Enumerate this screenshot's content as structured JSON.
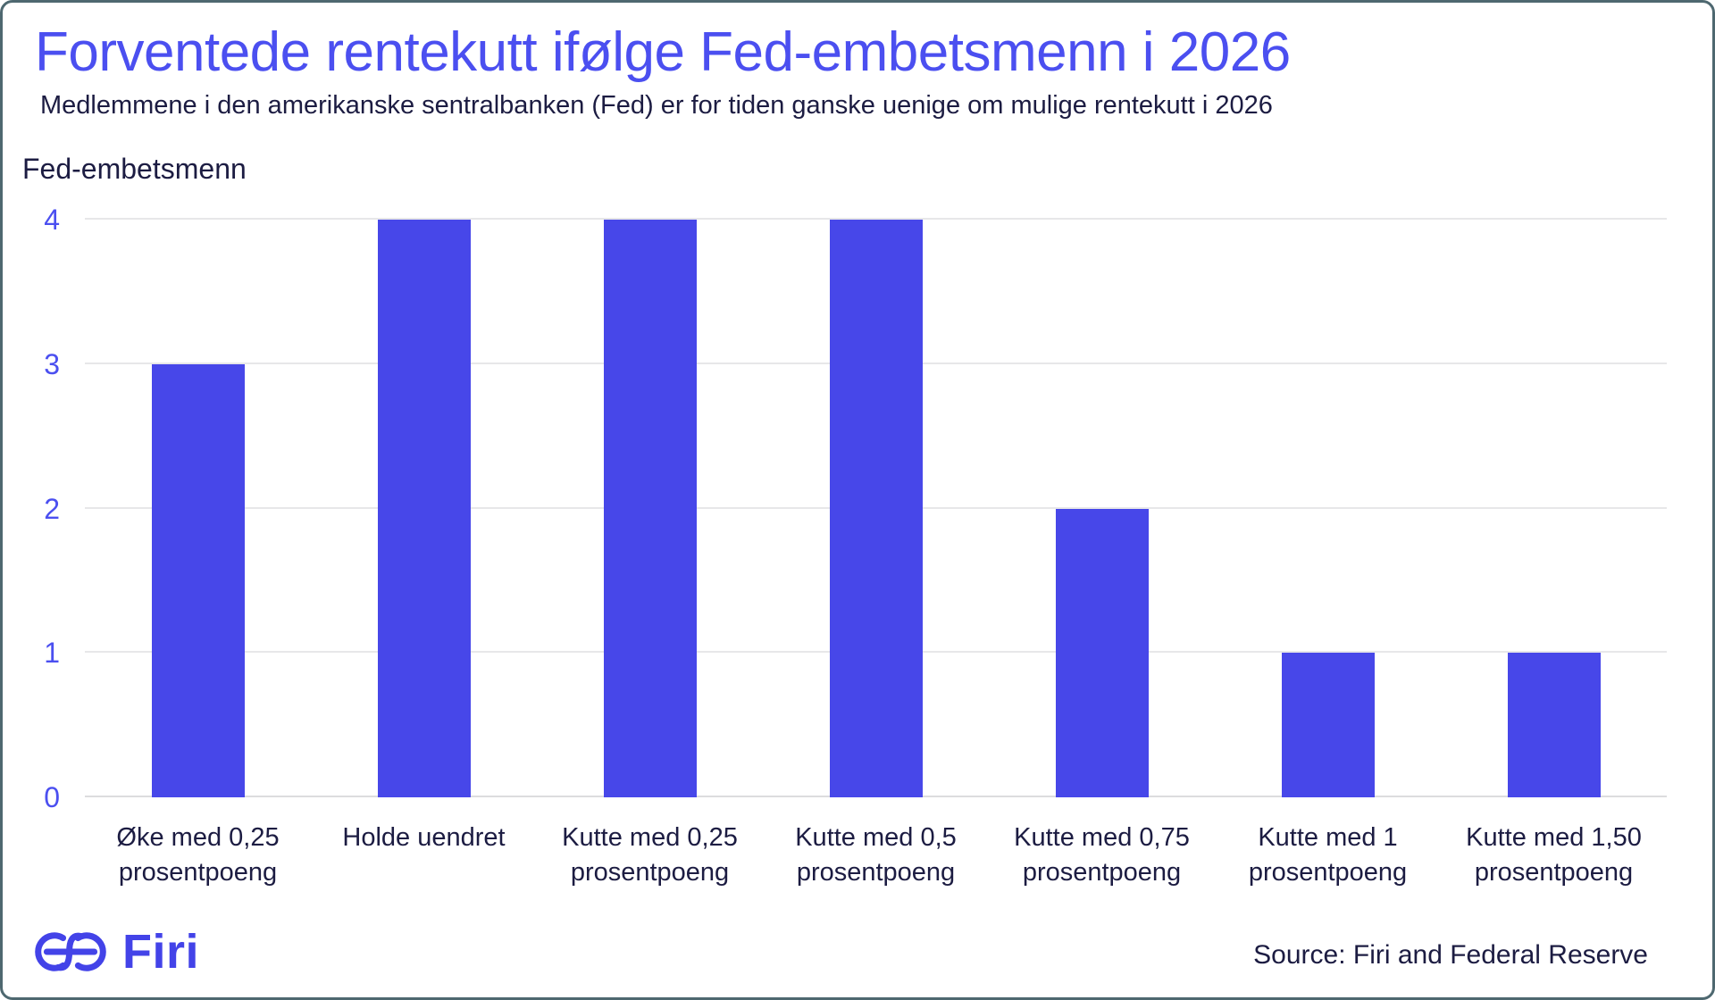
{
  "chart_data": {
    "type": "bar",
    "title": "Forventede rentekutt ifølge Fed-embetsmenn i 2026",
    "subtitle": "Medlemmene i den amerikanske sentralbanken (Fed) er for tiden ganske uenige om mulige rentekutt i 2026",
    "ylabel": "Fed-embetsmenn",
    "xlabel": "",
    "categories": [
      "Øke med 0,25\nprosentpoeng",
      "Holde uendret",
      "Kutte med 0,25\nprosentpoeng",
      "Kutte med 0,5\nprosentpoeng",
      "Kutte med 0,75\nprosentpoeng",
      "Kutte med 1\nprosentpoeng",
      "Kutte med 1,50\nprosentpoeng"
    ],
    "values": [
      3,
      4,
      4,
      4,
      2,
      1,
      1
    ],
    "ylim": [
      0,
      4
    ],
    "yticks": [
      "0",
      "1",
      "2",
      "3",
      "4"
    ],
    "grid": "horizontal",
    "legend": "none"
  },
  "footer": {
    "logo_text": "Firi",
    "source": "Source: Firi and Federal Reserve"
  },
  "colors": {
    "title_accent": "#4B4FF0",
    "bar": "#4747E9",
    "logo": "#4343E8",
    "text_dark": "#1C1C42",
    "gridline": "#E7E7E9",
    "card_border": "#4E6870"
  }
}
